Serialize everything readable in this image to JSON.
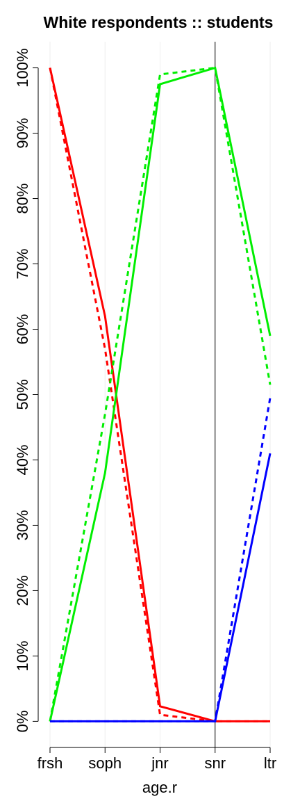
{
  "chart_data": {
    "type": "line",
    "title": "White respondents :: students",
    "xlabel": "age.r",
    "categories": [
      "frsh",
      "soph",
      "jnr",
      "snr",
      "ltr"
    ],
    "ylim": [
      -4,
      104
    ],
    "yticks": [
      {
        "value": 0,
        "label": "0%"
      },
      {
        "value": 10,
        "label": "10%"
      },
      {
        "value": 20,
        "label": "20%"
      },
      {
        "value": 30,
        "label": "30%"
      },
      {
        "value": 40,
        "label": "40%"
      },
      {
        "value": 50,
        "label": "50%"
      },
      {
        "value": 60,
        "label": "60%"
      },
      {
        "value": 70,
        "label": "70%"
      },
      {
        "value": 80,
        "label": "80%"
      },
      {
        "value": 90,
        "label": "90%"
      },
      {
        "value": 100,
        "label": "100%"
      }
    ],
    "grid_x": true,
    "vline": "snr",
    "series": [
      {
        "color": "#ff0000",
        "dashed": false,
        "values": [
          100,
          62,
          2.3,
          0,
          0
        ]
      },
      {
        "color": "#ff0000",
        "dashed": true,
        "values": [
          100,
          57,
          1,
          0,
          0
        ]
      },
      {
        "color": "#00ee00",
        "dashed": false,
        "values": [
          0,
          38,
          97.5,
          100,
          59
        ]
      },
      {
        "color": "#00ee00",
        "dashed": true,
        "values": [
          0,
          47,
          99,
          100,
          51.5
        ]
      },
      {
        "color": "#0000ff",
        "dashed": false,
        "values": [
          0,
          0,
          0,
          0,
          41
        ]
      },
      {
        "color": "#0000ff",
        "dashed": true,
        "values": [
          0,
          0,
          0,
          0,
          49.5
        ]
      }
    ]
  }
}
